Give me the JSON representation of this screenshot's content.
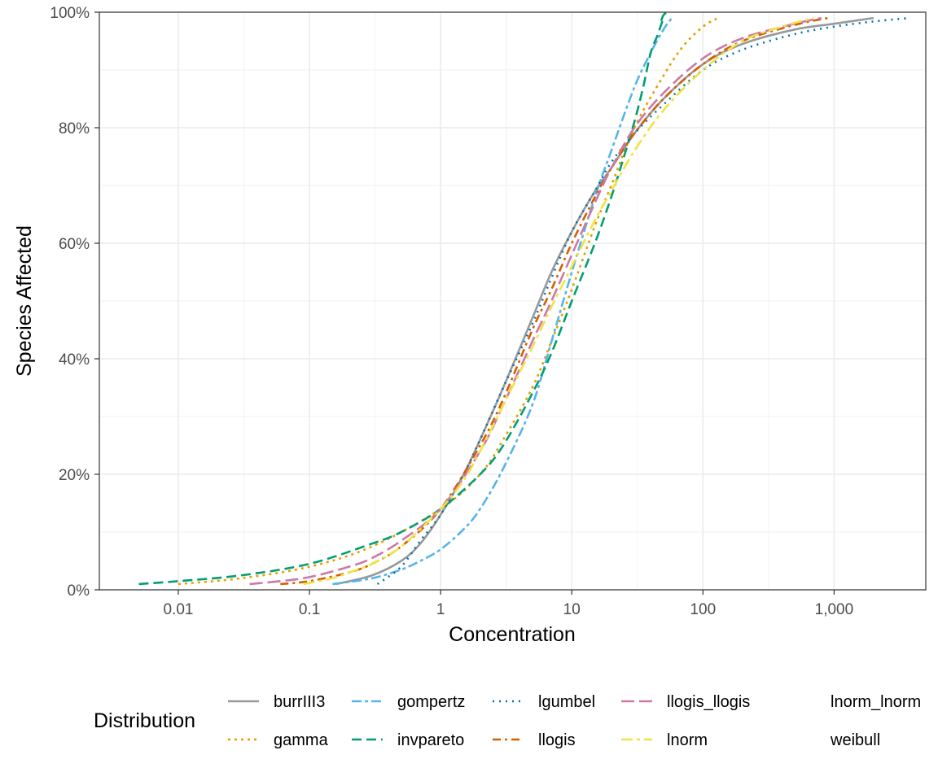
{
  "chart_data": {
    "type": "line",
    "xlabel": "Concentration",
    "ylabel": "Species Affected",
    "x_scale": "log10",
    "xlim": [
      0.0025,
      5000
    ],
    "ylim": [
      0,
      1
    ],
    "x_ticks": [
      {
        "value": 0.01,
        "label": "0.01"
      },
      {
        "value": 0.1,
        "label": "0.1"
      },
      {
        "value": 1,
        "label": "1"
      },
      {
        "value": 10,
        "label": "10"
      },
      {
        "value": 100,
        "label": "100"
      },
      {
        "value": 1000,
        "label": "1,000"
      }
    ],
    "y_ticks": [
      {
        "value": 0,
        "label": "0%"
      },
      {
        "value": 0.2,
        "label": "20%"
      },
      {
        "value": 0.4,
        "label": "40%"
      },
      {
        "value": 0.6,
        "label": "60%"
      },
      {
        "value": 0.8,
        "label": "80%"
      },
      {
        "value": 1,
        "label": "100%"
      }
    ],
    "grid": true,
    "legend_position": "bottom",
    "legend_title": "Distribution",
    "series": [
      {
        "name": "burrIII3",
        "color": "#999999",
        "dash": "solid",
        "x": [
          0.16,
          0.3,
          0.5,
          0.7,
          1,
          1.5,
          2,
          3,
          5,
          7,
          10,
          15,
          20,
          30,
          50,
          100,
          200,
          500,
          1000,
          2000
        ],
        "y": [
          0.01,
          0.025,
          0.05,
          0.08,
          0.13,
          0.2,
          0.26,
          0.35,
          0.47,
          0.55,
          0.62,
          0.69,
          0.73,
          0.79,
          0.85,
          0.91,
          0.945,
          0.97,
          0.98,
          0.99
        ]
      },
      {
        "name": "gamma",
        "color": "#E69F00",
        "dash": "3 5",
        "x": [
          0.01,
          0.03,
          0.1,
          0.3,
          1,
          2,
          3,
          5,
          7,
          10,
          15,
          20,
          30,
          50,
          70,
          100,
          130
        ],
        "y": [
          0.01,
          0.02,
          0.04,
          0.075,
          0.14,
          0.2,
          0.26,
          0.35,
          0.43,
          0.52,
          0.63,
          0.7,
          0.8,
          0.89,
          0.94,
          0.975,
          0.99
        ]
      },
      {
        "name": "gompertz",
        "color": "#56B4E9",
        "dash": "12 4 4 4",
        "x": [
          0.15,
          0.3,
          0.5,
          0.7,
          1,
          1.5,
          2,
          3,
          5,
          7,
          10,
          15,
          20,
          30,
          40,
          50,
          58
        ],
        "y": [
          0.01,
          0.02,
          0.035,
          0.05,
          0.07,
          0.105,
          0.14,
          0.21,
          0.32,
          0.43,
          0.55,
          0.68,
          0.76,
          0.87,
          0.93,
          0.97,
          0.99
        ]
      },
      {
        "name": "invpareto",
        "color": "#009E73",
        "dash": "12 6",
        "x": [
          0.005,
          0.01,
          0.03,
          0.1,
          0.3,
          0.5,
          1,
          2,
          3,
          5,
          7,
          10,
          15,
          20,
          25,
          30,
          35,
          40,
          45,
          50
        ],
        "y": [
          0.01,
          0.015,
          0.025,
          0.045,
          0.08,
          0.1,
          0.14,
          0.2,
          0.25,
          0.34,
          0.41,
          0.5,
          0.6,
          0.68,
          0.75,
          0.81,
          0.87,
          0.93,
          0.96,
          0.99
        ]
      },
      {
        "name": "invpareto_head",
        "color": "#009E73",
        "dash": "12 6",
        "legend": false,
        "x": [
          48,
          50,
          53
        ],
        "y": [
          0.985,
          0.995,
          1.0
        ]
      },
      {
        "name": "lgumbel",
        "color": "#0072B2",
        "dash": "2 6",
        "x": [
          0.33,
          0.5,
          0.7,
          1,
          1.5,
          2,
          3,
          5,
          7,
          10,
          15,
          20,
          30,
          50,
          100,
          200,
          500,
          1000,
          2000,
          3800
        ],
        "y": [
          0.01,
          0.04,
          0.085,
          0.13,
          0.2,
          0.26,
          0.35,
          0.46,
          0.54,
          0.62,
          0.69,
          0.74,
          0.79,
          0.84,
          0.9,
          0.935,
          0.962,
          0.975,
          0.984,
          0.99
        ]
      },
      {
        "name": "llogis",
        "color": "#D55E00",
        "dash": "10 5 3 5",
        "x": [
          0.06,
          0.1,
          0.2,
          0.3,
          0.5,
          1,
          2,
          3,
          5,
          7,
          10,
          15,
          20,
          30,
          50,
          100,
          200,
          500,
          900
        ],
        "y": [
          0.01,
          0.015,
          0.03,
          0.045,
          0.075,
          0.14,
          0.25,
          0.33,
          0.45,
          0.52,
          0.6,
          0.68,
          0.73,
          0.79,
          0.85,
          0.91,
          0.95,
          0.978,
          0.99
        ]
      },
      {
        "name": "llogis_llogis",
        "color": "#CC79A7",
        "dash": "16 6",
        "x": [
          0.035,
          0.06,
          0.1,
          0.2,
          0.3,
          0.5,
          1,
          2,
          3,
          5,
          7,
          10,
          15,
          20,
          30,
          50,
          100,
          200,
          500,
          800
        ],
        "y": [
          0.01,
          0.015,
          0.022,
          0.04,
          0.055,
          0.085,
          0.14,
          0.24,
          0.32,
          0.43,
          0.5,
          0.58,
          0.67,
          0.73,
          0.8,
          0.86,
          0.92,
          0.955,
          0.98,
          0.99
        ]
      },
      {
        "name": "lnorm",
        "color": "#F0E442",
        "dash": "14 5 4 5",
        "x": [
          0.09,
          0.15,
          0.2,
          0.3,
          0.5,
          1,
          1.5,
          2,
          3,
          5,
          7,
          10,
          15,
          20,
          30,
          50,
          100,
          200,
          400,
          700
        ],
        "y": [
          0.01,
          0.02,
          0.03,
          0.045,
          0.075,
          0.14,
          0.19,
          0.24,
          0.32,
          0.42,
          0.49,
          0.56,
          0.64,
          0.69,
          0.76,
          0.83,
          0.9,
          0.95,
          0.975,
          0.99
        ]
      }
    ],
    "legend_items": [
      {
        "label": "burrIII3",
        "color": "#999999",
        "dash": "solid"
      },
      {
        "label": "gamma",
        "color": "#E69F00",
        "dash": "3 5"
      },
      {
        "label": "gompertz",
        "color": "#56B4E9",
        "dash": "12 4 4 4"
      },
      {
        "label": "invpareto",
        "color": "#009E73",
        "dash": "12 6"
      },
      {
        "label": "lgumbel",
        "color": "#0072B2",
        "dash": "2 6"
      },
      {
        "label": "llogis",
        "color": "#D55E00",
        "dash": "10 5 3 5"
      },
      {
        "label": "llogis_llogis",
        "color": "#CC79A7",
        "dash": "16 6"
      },
      {
        "label": "lnorm",
        "color": "#F0E442",
        "dash": "14 5 4 5"
      },
      {
        "label": "lnorm_lnorm",
        "color": "none",
        "dash": "solid"
      },
      {
        "label": "weibull",
        "color": "none",
        "dash": "solid"
      }
    ]
  }
}
